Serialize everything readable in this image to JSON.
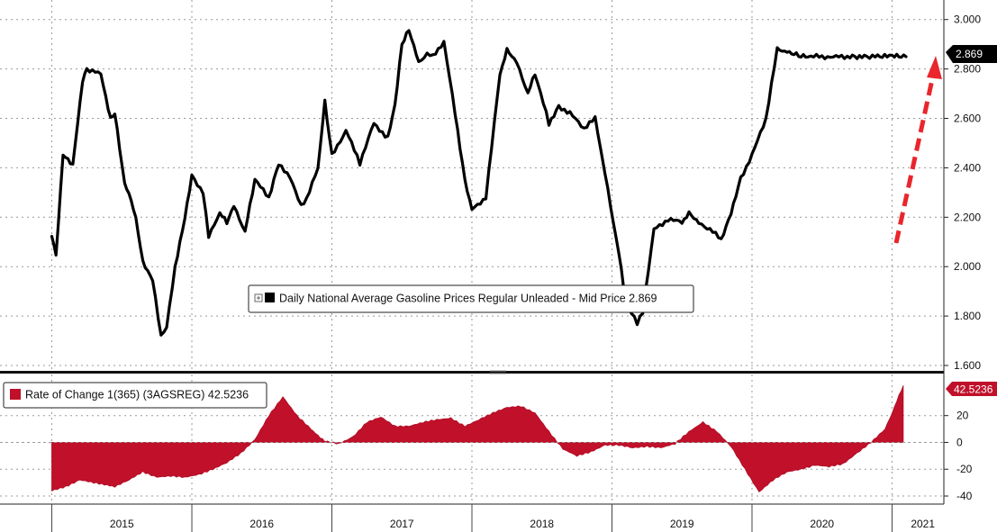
{
  "chart_data": [
    {
      "type": "line",
      "panel": "upper",
      "legend": {
        "label": "Daily National Average Gasoline Prices Regular Unleaded - Mid Price 2.869",
        "placement": "bottom-center"
      },
      "last_value_label": "2.869",
      "ylim": [
        1.6,
        3.05
      ],
      "yticks": [
        "1.600",
        "1.800",
        "2.000",
        "2.200",
        "2.400",
        "2.600",
        "2.800",
        "3.000"
      ],
      "grid": true,
      "colors": {
        "line": "#000000",
        "arrow": "#e8262c"
      },
      "annotation": "red-dashed-up-arrow",
      "series": [
        {
          "x": [
            2015.0,
            2015.03,
            2015.08,
            2015.15,
            2015.22,
            2015.25,
            2015.35,
            2015.42,
            2015.45,
            2015.52,
            2015.55,
            2015.6,
            2015.65,
            2015.72,
            2015.78,
            2015.82,
            2015.88,
            2015.95,
            2016.0,
            2016.08,
            2016.12,
            2016.2,
            2016.25,
            2016.3,
            2016.38,
            2016.45,
            2016.55,
            2016.62,
            2016.7,
            2016.78,
            2016.82,
            2016.9,
            2016.95,
            2017.0,
            2017.1,
            2017.2,
            2017.3,
            2017.4,
            2017.45,
            2017.5,
            2017.55,
            2017.62,
            2017.68,
            2017.72,
            2017.8,
            2017.88,
            2017.95,
            2018.0,
            2018.1,
            2018.2,
            2018.25,
            2018.32,
            2018.4,
            2018.45,
            2018.55,
            2018.62,
            2018.7,
            2018.8,
            2018.88,
            2018.95,
            2019.05,
            2019.1,
            2019.18,
            2019.22,
            2019.3,
            2019.4,
            2019.5,
            2019.55,
            2019.62,
            2019.7,
            2019.78,
            2019.85,
            2019.92,
            2020.0,
            2020.1,
            2020.18,
            2020.25,
            2020.3,
            2020.35,
            2020.4,
            2020.5,
            2020.6,
            2020.7,
            2020.75,
            2020.82,
            2020.88,
            2020.93,
            2021.0,
            2021.05,
            2021.1,
            2021.15,
            2021.2
          ],
          "y": [
            2.13,
            2.04,
            2.45,
            2.41,
            2.75,
            2.8,
            2.78,
            2.6,
            2.62,
            2.33,
            2.3,
            2.2,
            2.02,
            1.95,
            1.72,
            1.75,
            2.0,
            2.2,
            2.37,
            2.3,
            2.12,
            2.22,
            2.18,
            2.25,
            2.14,
            2.35,
            2.28,
            2.42,
            2.36,
            2.25,
            2.27,
            2.4,
            2.67,
            2.45,
            2.55,
            2.42,
            2.58,
            2.52,
            2.65,
            2.9,
            2.96,
            2.83,
            2.86,
            2.85,
            2.91,
            2.62,
            2.35,
            2.23,
            2.28,
            2.78,
            2.88,
            2.83,
            2.7,
            2.78,
            2.58,
            2.65,
            2.62,
            2.56,
            2.6,
            2.38,
            2.05,
            1.85,
            1.77,
            1.82,
            2.15,
            2.19,
            2.18,
            2.22,
            2.18,
            2.15,
            2.11,
            2.22,
            2.36,
            2.45,
            2.6,
            2.88,
            2.87,
            2.86,
            2.85,
            2.85,
            2.85,
            2.85,
            2.85,
            2.85,
            2.85,
            2.85,
            2.85,
            2.85,
            2.85,
            2.85,
            2.85,
            2.85
          ]
        }
      ]
    },
    {
      "type": "area",
      "panel": "lower",
      "legend": {
        "label": "Rate of Change 1(365) (3AGSREG) 42.5236",
        "placement": "top-left"
      },
      "last_value_label": "42.5236",
      "ylim": [
        -42,
        48
      ],
      "yticks": [
        "-40",
        "-20",
        "0",
        "20"
      ],
      "grid": true,
      "colors": {
        "fill": "#c0102a"
      },
      "series": [
        {
          "x": [
            2015.0,
            2015.1,
            2015.2,
            2015.3,
            2015.45,
            2015.55,
            2015.65,
            2015.75,
            2015.85,
            2015.95,
            2016.05,
            2016.15,
            2016.25,
            2016.35,
            2016.45,
            2016.55,
            2016.65,
            2016.75,
            2016.85,
            2016.9,
            2016.95,
            2017.05,
            2017.15,
            2017.25,
            2017.35,
            2017.45,
            2017.55,
            2017.65,
            2017.75,
            2017.85,
            2017.95,
            2018.05,
            2018.15,
            2018.25,
            2018.35,
            2018.45,
            2018.55,
            2018.65,
            2018.75,
            2018.85,
            2018.95,
            2019.05,
            2019.15,
            2019.25,
            2019.35,
            2019.45,
            2019.55,
            2019.65,
            2019.75,
            2019.85,
            2019.95,
            2020.05,
            2020.15,
            2020.25,
            2020.35,
            2020.45,
            2020.55,
            2020.65,
            2020.75,
            2020.85,
            2020.95,
            2021.0,
            2021.05,
            2021.08
          ],
          "y": [
            -36,
            -33,
            -28,
            -30,
            -33,
            -28,
            -22,
            -26,
            -25,
            -26,
            -24,
            -20,
            -15,
            -8,
            2,
            20,
            34,
            20,
            10,
            5,
            1,
            -1,
            4,
            15,
            19,
            12,
            12,
            15,
            17,
            18,
            12,
            17,
            22,
            26,
            27,
            22,
            8,
            -5,
            -10,
            -7,
            -2,
            -2,
            -4,
            -3,
            -4,
            -1,
            8,
            15,
            8,
            -3,
            -20,
            -37,
            -28,
            -22,
            -20,
            -17,
            -18,
            -16,
            -8,
            0,
            10,
            22,
            35,
            42.5
          ]
        }
      ]
    }
  ],
  "x_axis": {
    "labels": [
      "2015",
      "2016",
      "2017",
      "2018",
      "2019",
      "2020",
      "2021"
    ]
  }
}
